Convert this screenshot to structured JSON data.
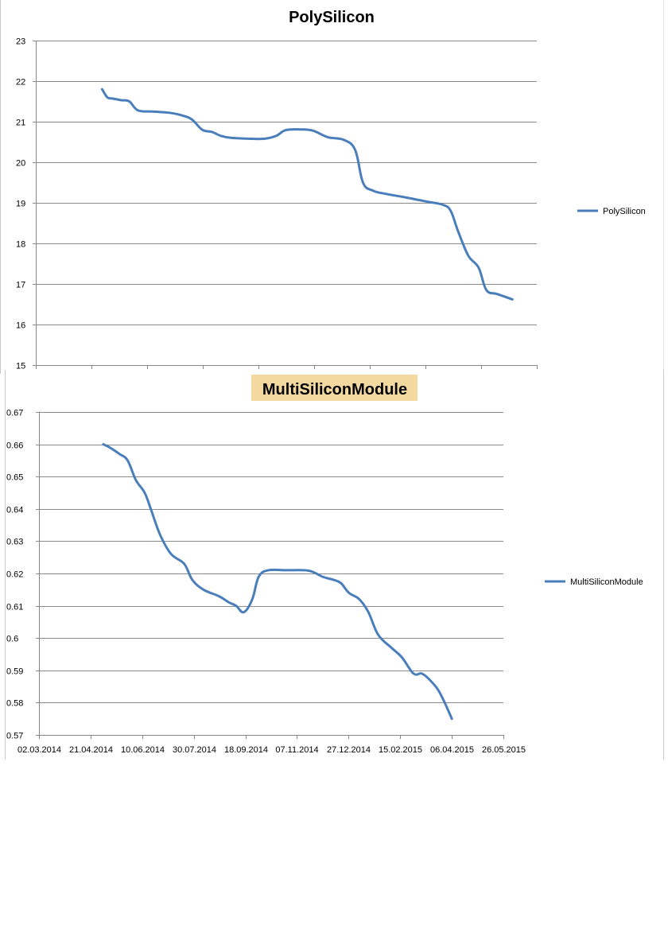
{
  "chart_data": [
    {
      "type": "line",
      "title": "PolySilicon",
      "xlabel": "",
      "ylabel": "",
      "ylim": [
        15,
        23
      ],
      "yticks": [
        15,
        16,
        17,
        18,
        19,
        20,
        21,
        22,
        23
      ],
      "series": [
        {
          "name": "PolySilicon",
          "color": "#4a7ebb",
          "points": [
            [
              0.1324,
              21.8
            ],
            [
              0.1429,
              21.6
            ],
            [
              0.1535,
              21.57
            ],
            [
              0.1708,
              21.53
            ],
            [
              0.1867,
              21.5
            ],
            [
              0.2038,
              21.28
            ],
            [
              0.2344,
              21.25
            ],
            [
              0.2672,
              21.22
            ],
            [
              0.2937,
              21.15
            ],
            [
              0.3119,
              21.05
            ],
            [
              0.3324,
              20.8
            ],
            [
              0.3513,
              20.75
            ],
            [
              0.3698,
              20.65
            ],
            [
              0.3913,
              20.6
            ],
            [
              0.424,
              20.58
            ],
            [
              0.4567,
              20.58
            ],
            [
              0.4796,
              20.65
            ],
            [
              0.4984,
              20.79
            ],
            [
              0.5266,
              20.81
            ],
            [
              0.553,
              20.78
            ],
            [
              0.5825,
              20.62
            ],
            [
              0.615,
              20.55
            ],
            [
              0.6376,
              20.3
            ],
            [
              0.653,
              19.5
            ],
            [
              0.673,
              19.3
            ],
            [
              0.699,
              19.22
            ],
            [
              0.7313,
              19.15
            ],
            [
              0.7642,
              19.07
            ],
            [
              0.785,
              19.02
            ],
            [
              0.813,
              18.95
            ],
            [
              0.8282,
              18.8
            ],
            [
              0.8429,
              18.3
            ],
            [
              0.8632,
              17.7
            ],
            [
              0.884,
              17.4
            ],
            [
              0.8993,
              16.85
            ],
            [
              0.9216,
              16.75
            ],
            [
              0.9513,
              16.62
            ]
          ]
        }
      ],
      "legend": "right"
    },
    {
      "type": "line",
      "title": "MultiSiliconModule",
      "title_background": "#f3d9a0",
      "xlabel": "",
      "ylabel": "",
      "ylim": [
        0.57,
        0.67
      ],
      "yticks": [
        "0.57",
        "0.58",
        "0.59",
        "0.6",
        "0.61",
        "0.62",
        "0.63",
        "0.64",
        "0.65",
        "0.66",
        "0.67"
      ],
      "x_tick_labels": [
        "02.03.2014",
        "21.04.2014",
        "10.06.2014",
        "30.07.2014",
        "18.09.2014",
        "07.11.2014",
        "27.12.2014",
        "15.02.2015",
        "06.04.2015",
        "26.05.2015"
      ],
      "series": [
        {
          "name": "MultiSiliconModule",
          "color": "#4a7ebb",
          "points": [
            [
              0.1385,
              0.66
            ],
            [
              0.1527,
              0.659
            ],
            [
              0.1734,
              0.657
            ],
            [
              0.191,
              0.655
            ],
            [
              0.2084,
              0.649
            ],
            [
              0.2276,
              0.645
            ],
            [
              0.2408,
              0.64
            ],
            [
              0.2608,
              0.632
            ],
            [
              0.2846,
              0.626
            ],
            [
              0.3127,
              0.623
            ],
            [
              0.3303,
              0.618
            ],
            [
              0.3541,
              0.615
            ],
            [
              0.3869,
              0.613
            ],
            [
              0.4095,
              0.611
            ],
            [
              0.4245,
              0.61
            ],
            [
              0.4411,
              0.608
            ],
            [
              0.4593,
              0.612
            ],
            [
              0.4732,
              0.619
            ],
            [
              0.4942,
              0.621
            ],
            [
              0.532,
              0.621
            ],
            [
              0.5698,
              0.621
            ],
            [
              0.5894,
              0.6205
            ],
            [
              0.6107,
              0.619
            ],
            [
              0.6349,
              0.618
            ],
            [
              0.6503,
              0.617
            ],
            [
              0.6674,
              0.614
            ],
            [
              0.6899,
              0.612
            ],
            [
              0.7094,
              0.608
            ],
            [
              0.7304,
              0.601
            ],
            [
              0.7589,
              0.597
            ],
            [
              0.7816,
              0.594
            ],
            [
              0.8065,
              0.589
            ],
            [
              0.8245,
              0.589
            ],
            [
              0.8417,
              0.587
            ],
            [
              0.8592,
              0.584
            ],
            [
              0.8736,
              0.58
            ],
            [
              0.8891,
              0.575
            ]
          ]
        }
      ],
      "legend": "right"
    }
  ]
}
